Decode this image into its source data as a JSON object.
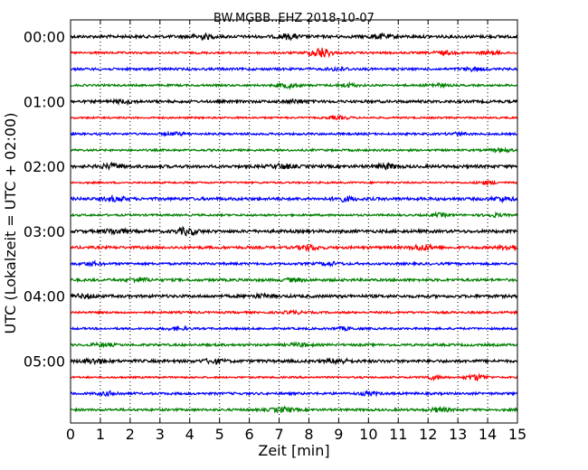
{
  "chart_data": {
    "type": "line",
    "subtype": "helicorder",
    "title": "BW.MGBB..EHZ 2018-10-07",
    "xlabel": "Zeit  [min]",
    "ylabel": "UTC (Lokalzeit = UTC + 02:00)",
    "xlim": [
      0,
      15
    ],
    "x_ticks": [
      "0",
      "1",
      "2",
      "3",
      "4",
      "5",
      "6",
      "7",
      "8",
      "9",
      "10",
      "11",
      "12",
      "13",
      "14",
      "15"
    ],
    "y_tick_labels": [
      "00:00",
      "01:00",
      "02:00",
      "03:00",
      "04:00",
      "05:00"
    ],
    "minutes_per_line": 15,
    "line_count": 24,
    "line_start_times": [
      "00:00",
      "00:15",
      "00:30",
      "00:45",
      "01:00",
      "01:15",
      "01:30",
      "01:45",
      "02:00",
      "02:15",
      "02:30",
      "02:45",
      "03:00",
      "03:15",
      "03:30",
      "03:45",
      "04:00",
      "04:15",
      "04:30",
      "04:45",
      "05:00",
      "05:15",
      "05:30",
      "05:45"
    ],
    "trace_colors": [
      "#000000",
      "#ff0000",
      "#0000ff",
      "#008000"
    ],
    "grid": "vertical dotted at each minute",
    "amplitude_profile": [
      {
        "line": "00:00",
        "color": "#000000",
        "level": 1.0,
        "bursts": [
          [
            4.4,
            1.0
          ],
          [
            7.3,
            0.9
          ],
          [
            10.4,
            0.8
          ]
        ]
      },
      {
        "line": "00:15",
        "color": "#ff0000",
        "level": 0.7,
        "bursts": [
          [
            8.4,
            2.2
          ],
          [
            12.5,
            0.7
          ],
          [
            14.1,
            0.6
          ]
        ]
      },
      {
        "line": "00:30",
        "color": "#0000ff",
        "level": 0.8,
        "bursts": [
          [
            9.0,
            0.6
          ],
          [
            13.5,
            0.6
          ]
        ]
      },
      {
        "line": "00:45",
        "color": "#008000",
        "level": 0.7,
        "bursts": [
          [
            7.3,
            1.0
          ],
          [
            9.3,
            0.7
          ],
          [
            12.3,
            0.6
          ]
        ]
      },
      {
        "line": "01:00",
        "color": "#000000",
        "level": 0.9,
        "bursts": [
          [
            1.8,
            0.6
          ],
          [
            7.6,
            0.6
          ]
        ]
      },
      {
        "line": "01:15",
        "color": "#ff0000",
        "level": 0.6,
        "bursts": [
          [
            9.0,
            0.6
          ]
        ]
      },
      {
        "line": "01:30",
        "color": "#0000ff",
        "level": 0.7,
        "bursts": [
          [
            3.5,
            0.5
          ],
          [
            13.0,
            0.5
          ]
        ]
      },
      {
        "line": "01:45",
        "color": "#008000",
        "level": 0.7,
        "bursts": [
          [
            14.5,
            0.6
          ]
        ]
      },
      {
        "line": "02:00",
        "color": "#000000",
        "level": 1.0,
        "bursts": [
          [
            1.4,
            1.0
          ],
          [
            7.1,
            0.9
          ],
          [
            10.6,
            0.9
          ]
        ]
      },
      {
        "line": "02:15",
        "color": "#ff0000",
        "level": 0.6,
        "bursts": [
          [
            14.0,
            0.6
          ]
        ]
      },
      {
        "line": "02:30",
        "color": "#0000ff",
        "level": 1.0,
        "bursts": [
          [
            1.5,
            0.8
          ],
          [
            9.2,
            0.8
          ],
          [
            14.5,
            0.7
          ]
        ]
      },
      {
        "line": "02:45",
        "color": "#008000",
        "level": 0.7,
        "bursts": [
          [
            12.4,
            0.6
          ],
          [
            14.2,
            0.6
          ]
        ]
      },
      {
        "line": "03:00",
        "color": "#000000",
        "level": 1.0,
        "bursts": [
          [
            1.5,
            1.0
          ],
          [
            3.9,
            1.4
          ]
        ]
      },
      {
        "line": "03:15",
        "color": "#ff0000",
        "level": 0.9,
        "bursts": [
          [
            8.0,
            1.0
          ],
          [
            11.8,
            1.1
          ],
          [
            14.8,
            1.0
          ]
        ]
      },
      {
        "line": "03:30",
        "color": "#0000ff",
        "level": 0.8,
        "bursts": [
          [
            0.7,
            0.6
          ],
          [
            8.7,
            0.6
          ]
        ]
      },
      {
        "line": "03:45",
        "color": "#008000",
        "level": 0.9,
        "bursts": [
          [
            2.3,
            0.7
          ],
          [
            7.5,
            0.6
          ]
        ]
      },
      {
        "line": "04:00",
        "color": "#000000",
        "level": 1.0,
        "bursts": [
          [
            0.5,
            0.7
          ],
          [
            6.4,
            0.6
          ]
        ]
      },
      {
        "line": "04:15",
        "color": "#ff0000",
        "level": 0.7,
        "bursts": [
          [
            7.5,
            0.5
          ]
        ]
      },
      {
        "line": "04:30",
        "color": "#0000ff",
        "level": 0.7,
        "bursts": [
          [
            3.6,
            0.6
          ],
          [
            9.2,
            0.5
          ]
        ]
      },
      {
        "line": "04:45",
        "color": "#008000",
        "level": 0.8,
        "bursts": [
          [
            1.1,
            0.6
          ],
          [
            7.7,
            0.6
          ]
        ]
      },
      {
        "line": "05:00",
        "color": "#000000",
        "level": 1.0,
        "bursts": [
          [
            0.8,
            0.9
          ],
          [
            4.8,
            0.8
          ],
          [
            9.0,
            0.8
          ]
        ]
      },
      {
        "line": "05:15",
        "color": "#ff0000",
        "level": 0.6,
        "bursts": [
          [
            12.2,
            0.8
          ],
          [
            13.6,
            1.2
          ]
        ]
      },
      {
        "line": "05:30",
        "color": "#0000ff",
        "level": 0.8,
        "bursts": [
          [
            1.3,
            0.7
          ],
          [
            10.0,
            0.6
          ]
        ]
      },
      {
        "line": "05:45",
        "color": "#008000",
        "level": 0.8,
        "bursts": [
          [
            7.1,
            1.0
          ],
          [
            12.4,
            0.8
          ]
        ]
      }
    ]
  }
}
